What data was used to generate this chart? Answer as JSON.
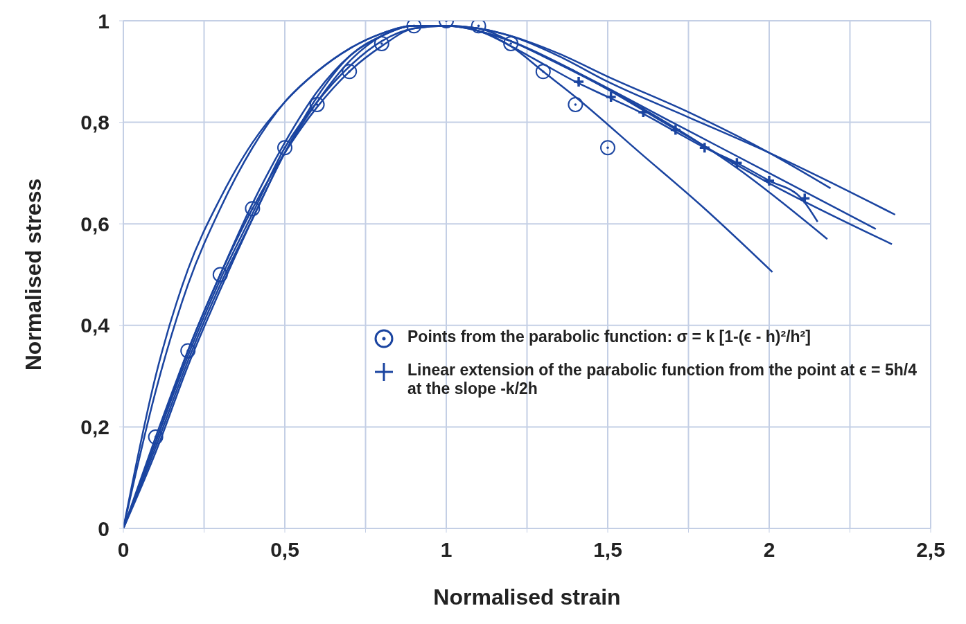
{
  "chart_data": {
    "type": "line",
    "xlabel": "Normalised strain",
    "ylabel": "Normalised stress",
    "xlim": [
      0,
      2.5
    ],
    "ylim": [
      0,
      1
    ],
    "xticks": [
      {
        "value": 0,
        "label": "0"
      },
      {
        "value": 0.25,
        "label": null
      },
      {
        "value": 0.5,
        "label": "0,5"
      },
      {
        "value": 0.75,
        "label": null
      },
      {
        "value": 1,
        "label": "1"
      },
      {
        "value": 1.25,
        "label": null
      },
      {
        "value": 1.5,
        "label": "1,5"
      },
      {
        "value": 1.75,
        "label": null
      },
      {
        "value": 2,
        "label": "2"
      },
      {
        "value": 2.25,
        "label": null
      },
      {
        "value": 2.5,
        "label": "2,5"
      }
    ],
    "yticks": [
      {
        "value": 0,
        "label": "0"
      },
      {
        "value": 0.2,
        "label": "0,2"
      },
      {
        "value": 0.4,
        "label": "0,4"
      },
      {
        "value": 0.6,
        "label": "0,6"
      },
      {
        "value": 0.8,
        "label": "0,8"
      },
      {
        "value": 1,
        "label": "1"
      }
    ],
    "grid": true,
    "legend": "right",
    "line_style": "solid",
    "series": [
      {
        "color": "#1a44a0",
        "x": [
          0,
          0.1,
          0.2,
          0.3,
          0.4,
          0.5,
          0.6,
          0.7,
          0.8,
          0.9,
          1.0,
          1.1,
          1.2,
          1.3,
          1.4,
          1.6,
          1.8,
          2.01
        ],
        "values": [
          0,
          0.18,
          0.35,
          0.5,
          0.63,
          0.74,
          0.83,
          0.9,
          0.95,
          0.985,
          0.99,
          0.98,
          0.95,
          0.9,
          0.85,
          0.74,
          0.63,
          0.505
        ]
      },
      {
        "type": "line",
        "color": "#1a44a0",
        "x": [
          0,
          0.1,
          0.2,
          0.3,
          0.4,
          0.5,
          0.6,
          0.7,
          0.8,
          0.9,
          1.0,
          1.1,
          1.2,
          1.3,
          1.4,
          1.5,
          1.6,
          1.7,
          1.8,
          1.9,
          2.0,
          2.1,
          2.15
        ],
        "values": [
          0,
          0.17,
          0.34,
          0.49,
          0.62,
          0.75,
          0.84,
          0.91,
          0.96,
          0.985,
          0.99,
          0.98,
          0.95,
          0.915,
          0.88,
          0.85,
          0.82,
          0.785,
          0.75,
          0.72,
          0.685,
          0.65,
          0.604
        ]
      },
      {
        "type": "line",
        "color": "#1a44a0",
        "x": [
          0,
          0.1,
          0.2,
          0.3,
          0.4,
          0.5,
          0.6,
          0.7,
          0.8,
          0.9,
          1.0,
          1.1,
          1.2,
          1.3,
          1.6,
          1.9,
          2.18
        ],
        "values": [
          0,
          0.16,
          0.33,
          0.48,
          0.61,
          0.74,
          0.84,
          0.92,
          0.97,
          0.99,
          0.99,
          0.98,
          0.96,
          0.93,
          0.83,
          0.71,
          0.57
        ]
      },
      {
        "type": "line",
        "color": "#1a44a0",
        "x": [
          0,
          0.1,
          0.2,
          0.3,
          0.4,
          0.5,
          0.6,
          0.7,
          0.8,
          0.9,
          1.0,
          1.1,
          1.2,
          1.4,
          1.7,
          2.0,
          2.33
        ],
        "values": [
          0,
          0.17,
          0.35,
          0.5,
          0.64,
          0.76,
          0.86,
          0.93,
          0.97,
          0.99,
          0.99,
          0.985,
          0.96,
          0.9,
          0.8,
          0.7,
          0.59
        ]
      },
      {
        "type": "line",
        "color": "#1a44a0",
        "x": [
          0,
          0.1,
          0.2,
          0.3,
          0.4,
          0.5,
          0.6,
          0.7,
          0.8,
          0.9,
          1.0,
          1.1,
          1.2,
          1.4,
          1.7,
          2.0,
          2.38
        ],
        "values": [
          0,
          0.15,
          0.32,
          0.47,
          0.61,
          0.74,
          0.85,
          0.93,
          0.97,
          0.99,
          0.99,
          0.98,
          0.96,
          0.9,
          0.79,
          0.68,
          0.56
        ]
      },
      {
        "type": "line",
        "color": "#1a44a0",
        "x": [
          0,
          0.1,
          0.2,
          0.3,
          0.4,
          0.5,
          0.6,
          0.7,
          0.8,
          0.9,
          1.0,
          1.1,
          1.2,
          1.35,
          1.5,
          1.75,
          2.0,
          2.39
        ],
        "values": [
          0,
          0.3,
          0.51,
          0.65,
          0.76,
          0.84,
          0.9,
          0.945,
          0.975,
          0.99,
          0.99,
          0.985,
          0.97,
          0.93,
          0.88,
          0.81,
          0.74,
          0.618
        ]
      },
      {
        "type": "line",
        "color": "#1a44a0",
        "x": [
          0,
          0.1,
          0.2,
          0.3,
          0.4,
          0.5,
          0.6,
          0.7,
          0.8,
          0.9,
          1.0,
          1.1,
          1.2,
          1.35,
          1.5,
          1.75,
          2.0,
          2.19
        ],
        "values": [
          0,
          0.27,
          0.48,
          0.63,
          0.75,
          0.84,
          0.9,
          0.945,
          0.975,
          0.99,
          0.99,
          0.985,
          0.97,
          0.935,
          0.89,
          0.82,
          0.74,
          0.67
        ]
      },
      {
        "type": "scatter",
        "marker": "circle",
        "color": "#1a44a0",
        "name": "Points from the parabolic function: σ = k [1-(ϵ - h)²/h²]",
        "x": [
          0.1,
          0.2,
          0.3,
          0.4,
          0.5,
          0.6,
          0.7,
          0.8,
          0.9,
          1.0,
          1.1,
          1.2,
          1.3,
          1.4,
          1.5
        ],
        "values": [
          0.18,
          0.35,
          0.5,
          0.63,
          0.75,
          0.835,
          0.9,
          0.955,
          0.99,
          1.0,
          0.99,
          0.955,
          0.9,
          0.835,
          0.75
        ]
      },
      {
        "type": "scatter",
        "marker": "cross",
        "color": "#1a44a0",
        "name": "Linear extension of the parabolic function from the point at ϵ = 5h/4 at the slope -k/2h",
        "x": [
          1.41,
          1.51,
          1.61,
          1.71,
          1.8,
          1.9,
          2.0,
          2.11
        ],
        "values": [
          0.88,
          0.85,
          0.82,
          0.785,
          0.75,
          0.72,
          0.685,
          0.65
        ]
      }
    ]
  }
}
